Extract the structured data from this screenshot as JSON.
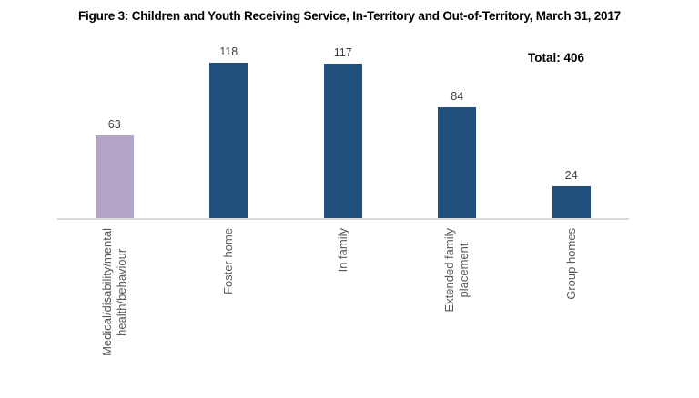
{
  "chart_data": {
    "type": "bar",
    "title": "Figure 3: Children and Youth Receiving Service, In-Territory and Out-of-Territory, March 31, 2017",
    "annotation": "Total: 406",
    "total": 406,
    "categories": [
      "Medical/disability/mental health/behaviour",
      "Foster home",
      "In family",
      "Extended family placement",
      "Group homes"
    ],
    "categories_display": [
      "Medical/disability/mental\nhealth/behaviour",
      "Foster home",
      "In family",
      "Extended family\nplacement",
      "Group homes"
    ],
    "values": [
      63,
      118,
      117,
      84,
      24
    ],
    "bar_colors": [
      "#B3A5C8",
      "#20507D",
      "#20507D",
      "#20507D",
      "#20507D"
    ],
    "colors": {
      "highlight_purple": "#B3A5C8",
      "primary_blue": "#20507D",
      "axis_line": "#D9D9D9",
      "category_label_gray": "#595959",
      "value_label_gray": "#3F3F3F",
      "title_black": "#000000"
    },
    "xlabel": "",
    "ylabel": "",
    "ylim": [
      0,
      130
    ],
    "gridlines": false,
    "y_axis_visible": false,
    "legend": "none",
    "data_labels": true
  }
}
